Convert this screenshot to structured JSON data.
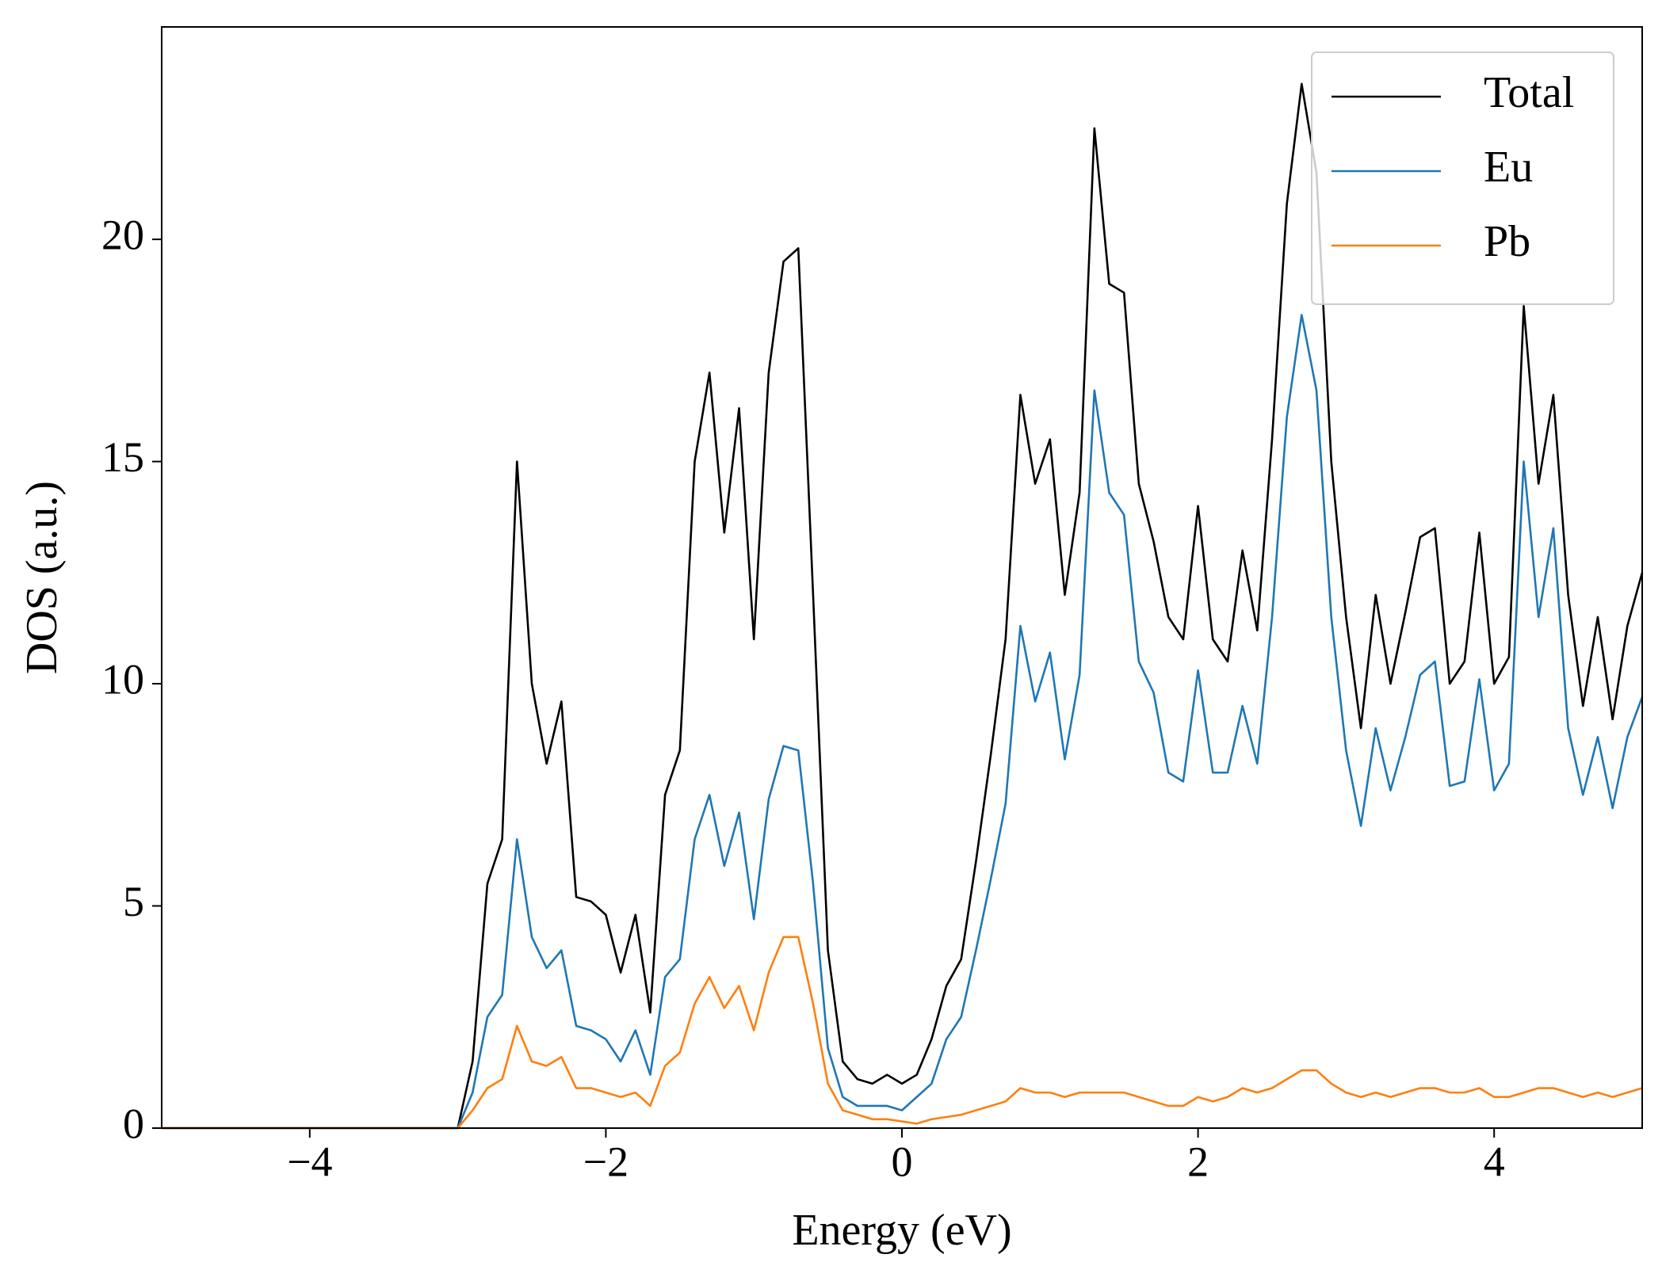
{
  "chart_data": {
    "type": "line",
    "xlabel": "Energy (eV)",
    "ylabel": "DOS (a.u.)",
    "xlim": [
      -5,
      5
    ],
    "ylim": [
      0,
      24.78
    ],
    "xticks": [
      {
        "value": -4,
        "label": "−4"
      },
      {
        "value": -2,
        "label": "−2"
      },
      0,
      2,
      4
    ],
    "yticks": [
      0,
      5,
      10,
      15,
      20
    ],
    "legend": "upper right",
    "grid": false,
    "x": [
      -5,
      -3.0,
      -2.9,
      -2.8,
      -2.7,
      -2.6,
      -2.5,
      -2.4,
      -2.3,
      -2.2,
      -2.1,
      -2.0,
      -1.9,
      -1.8,
      -1.7,
      -1.6,
      -1.5,
      -1.4,
      -1.3,
      -1.2,
      -1.1,
      -1.0,
      -0.9,
      -0.8,
      -0.7,
      -0.6,
      -0.5,
      -0.4,
      -0.3,
      -0.2,
      -0.1,
      0.0,
      0.1,
      0.2,
      0.3,
      0.4,
      0.5,
      0.6,
      0.7,
      0.8,
      0.9,
      1.0,
      1.1,
      1.2,
      1.3,
      1.4,
      1.5,
      1.6,
      1.7,
      1.8,
      1.9,
      2.0,
      2.1,
      2.2,
      2.3,
      2.4,
      2.5,
      2.6,
      2.7,
      2.8,
      2.9,
      3.0,
      3.1,
      3.2,
      3.3,
      3.4,
      3.5,
      3.6,
      3.7,
      3.8,
      3.9,
      4.0,
      4.1,
      4.2,
      4.3,
      4.4,
      4.5,
      4.6,
      4.7,
      4.8,
      4.9,
      5.0
    ],
    "series": [
      {
        "name": "Total",
        "color": "#000000",
        "values": [
          0,
          0,
          1.5,
          5.5,
          6.5,
          15.0,
          10.0,
          8.2,
          9.6,
          5.2,
          5.1,
          4.8,
          3.5,
          4.8,
          2.6,
          7.5,
          8.5,
          15.0,
          17.0,
          13.4,
          16.2,
          11.0,
          17.0,
          19.5,
          19.8,
          12.0,
          4.0,
          1.5,
          1.1,
          1.0,
          1.2,
          1.0,
          1.2,
          2.0,
          3.2,
          3.8,
          6.0,
          8.4,
          11.0,
          16.5,
          14.5,
          15.5,
          12.0,
          14.3,
          22.5,
          19.0,
          18.8,
          14.5,
          13.2,
          11.5,
          11.0,
          14.0,
          11.0,
          10.5,
          13.0,
          11.2,
          15.5,
          20.8,
          23.5,
          21.5,
          15.0,
          11.5,
          9.0,
          12.0,
          10.0,
          11.6,
          13.3,
          13.5,
          10.0,
          10.5,
          13.4,
          10.0,
          10.6,
          18.5,
          14.5,
          16.5,
          12.0,
          9.5,
          11.5,
          9.2,
          11.3,
          12.5
        ]
      },
      {
        "name": "Eu",
        "color": "#1f77b4",
        "values": [
          0,
          0,
          0.8,
          2.5,
          3.0,
          6.5,
          4.3,
          3.6,
          4.0,
          2.3,
          2.2,
          2.0,
          1.5,
          2.2,
          1.2,
          3.4,
          3.8,
          6.5,
          7.5,
          5.9,
          7.1,
          4.7,
          7.4,
          8.6,
          8.5,
          5.5,
          1.8,
          0.7,
          0.5,
          0.5,
          0.5,
          0.4,
          0.7,
          1.0,
          2.0,
          2.5,
          4.0,
          5.6,
          7.3,
          11.3,
          9.6,
          10.7,
          8.3,
          10.2,
          16.6,
          14.3,
          13.8,
          10.5,
          9.8,
          8.0,
          7.8,
          10.3,
          8.0,
          8.0,
          9.5,
          8.2,
          11.5,
          16.0,
          18.3,
          16.6,
          11.5,
          8.5,
          6.8,
          9.0,
          7.6,
          8.8,
          10.2,
          10.5,
          7.7,
          7.8,
          10.1,
          7.6,
          8.2,
          15.0,
          11.5,
          13.5,
          9.0,
          7.5,
          8.8,
          7.2,
          8.8,
          9.7
        ]
      },
      {
        "name": "Pb",
        "color": "#ff7f0e",
        "values": [
          0,
          0,
          0.4,
          0.9,
          1.1,
          2.3,
          1.5,
          1.4,
          1.6,
          0.9,
          0.9,
          0.8,
          0.7,
          0.8,
          0.5,
          1.4,
          1.7,
          2.8,
          3.4,
          2.7,
          3.2,
          2.2,
          3.5,
          4.3,
          4.3,
          2.8,
          1.0,
          0.4,
          0.3,
          0.2,
          0.2,
          0.15,
          0.1,
          0.2,
          0.25,
          0.3,
          0.4,
          0.5,
          0.6,
          0.9,
          0.8,
          0.8,
          0.7,
          0.8,
          0.8,
          0.8,
          0.8,
          0.7,
          0.6,
          0.5,
          0.5,
          0.7,
          0.6,
          0.7,
          0.9,
          0.8,
          0.9,
          1.1,
          1.3,
          1.3,
          1.0,
          0.8,
          0.7,
          0.8,
          0.7,
          0.8,
          0.9,
          0.9,
          0.8,
          0.8,
          0.9,
          0.7,
          0.7,
          0.8,
          0.9,
          0.9,
          0.8,
          0.7,
          0.8,
          0.7,
          0.8,
          0.9
        ]
      }
    ]
  }
}
